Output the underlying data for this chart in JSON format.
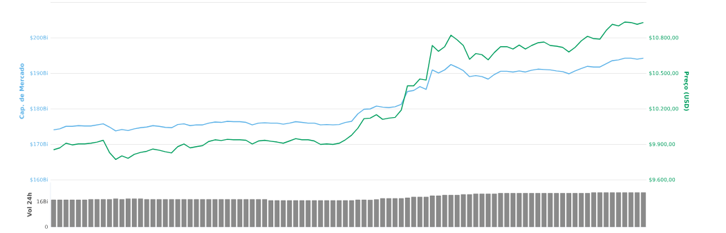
{
  "chart_data": [
    {
      "type": "line",
      "ylabel": "Cap. de Mercado",
      "y2label": "Preço (USD)",
      "grid": "y",
      "marker": "none",
      "line_style": "solid",
      "categories": [
        null,
        null,
        null,
        null,
        null,
        null,
        null,
        null,
        null,
        null,
        null,
        null,
        null,
        null,
        null,
        null,
        null,
        null,
        null,
        null,
        null,
        null,
        null,
        null,
        null,
        null,
        null,
        null,
        null,
        null,
        null,
        null,
        null,
        null,
        null,
        null,
        null,
        null,
        null,
        null,
        null,
        null,
        null,
        null,
        null,
        null,
        null,
        null,
        null,
        null,
        null,
        null,
        null,
        null,
        null,
        null,
        null,
        null,
        null,
        null,
        null,
        null,
        null,
        null,
        null,
        null,
        null,
        null,
        null,
        null,
        null,
        null,
        null,
        null,
        null,
        null,
        null,
        null,
        null,
        null,
        null,
        null,
        null,
        null,
        null,
        null,
        null,
        null,
        null,
        null,
        null,
        null,
        null,
        null,
        null,
        null
      ],
      "ylim": [
        160,
        210
      ],
      "yticks": [
        {
          "value": 160,
          "label": "$160Bi"
        },
        {
          "value": 170,
          "label": "$170Bi"
        },
        {
          "value": 180,
          "label": "$180Bi"
        },
        {
          "value": 190,
          "label": "$190Bi"
        },
        {
          "value": 200,
          "label": "$200Bi"
        },
        {
          "value": 210,
          "label": null
        }
      ],
      "y2lim": [
        9600,
        11100
      ],
      "y2ticks": [
        {
          "value": 9600,
          "label": "$9.600,00"
        },
        {
          "value": 9900,
          "label": "$9.900,00"
        },
        {
          "value": 10200,
          "label": "$10.200,00"
        },
        {
          "value": 10500,
          "label": "$10.500,00"
        },
        {
          "value": 10800,
          "label": "$10.800,00"
        },
        {
          "value": 11100,
          "label": null
        }
      ],
      "series": [
        {
          "color": "#5cb2e8",
          "axis": "y",
          "values": [
            174.1,
            174.4,
            175.1,
            175.1,
            175.3,
            175.2,
            175.2,
            175.5,
            175.8,
            174.9,
            173.8,
            174.2,
            173.9,
            174.4,
            174.7,
            174.9,
            175.3,
            175.1,
            174.8,
            174.7,
            175.6,
            175.8,
            175.3,
            175.5,
            175.5,
            176.0,
            176.3,
            176.2,
            176.5,
            176.4,
            176.4,
            176.2,
            175.5,
            176.0,
            176.1,
            176.0,
            176.0,
            175.7,
            176.0,
            176.4,
            176.2,
            176.0,
            176.0,
            175.5,
            175.6,
            175.5,
            175.6,
            176.2,
            176.5,
            178.6,
            179.9,
            180.0,
            180.8,
            180.5,
            180.4,
            180.6,
            181.3,
            184.9,
            185.2,
            186.3,
            185.5,
            191.0,
            190.1,
            191.0,
            192.5,
            191.7,
            190.8,
            189.1,
            189.4,
            189.1,
            188.4,
            189.7,
            190.6,
            190.6,
            190.4,
            190.7,
            190.4,
            190.9,
            191.2,
            191.1,
            191.0,
            190.7,
            190.5,
            189.9,
            190.7,
            191.4,
            192.0,
            191.8,
            191.8,
            192.7,
            193.6,
            193.8,
            194.3,
            194.3,
            194.0,
            194.3
          ]
        },
        {
          "color": "#009e5e",
          "axis": "y2",
          "values": [
            9855,
            9871,
            9910,
            9896,
            9904,
            9904,
            9910,
            9920,
            9935,
            9832,
            9773,
            9803,
            9783,
            9816,
            9832,
            9842,
            9861,
            9851,
            9838,
            9828,
            9881,
            9904,
            9871,
            9881,
            9890,
            9925,
            9939,
            9933,
            9943,
            9939,
            9939,
            9935,
            9904,
            9929,
            9935,
            9927,
            9920,
            9910,
            9929,
            9949,
            9939,
            9939,
            9929,
            9900,
            9904,
            9900,
            9910,
            9939,
            9978,
            10036,
            10118,
            10122,
            10151,
            10112,
            10122,
            10128,
            10190,
            10395,
            10395,
            10453,
            10444,
            10736,
            10687,
            10726,
            10823,
            10784,
            10736,
            10619,
            10668,
            10658,
            10615,
            10677,
            10726,
            10726,
            10706,
            10740,
            10706,
            10736,
            10759,
            10765,
            10736,
            10730,
            10720,
            10681,
            10720,
            10775,
            10814,
            10794,
            10790,
            10862,
            10915,
            10901,
            10934,
            10930,
            10915,
            10930
          ]
        }
      ]
    },
    {
      "type": "bar",
      "ylabel": "Vol 24h",
      "color": "#8a8a8a",
      "categories": [
        null,
        null,
        null,
        null,
        null,
        null,
        null,
        null,
        null,
        null,
        null,
        null,
        null,
        null,
        null,
        null,
        null,
        null,
        null,
        null,
        null,
        null,
        null,
        null,
        null,
        null,
        null,
        null,
        null,
        null,
        null,
        null,
        null,
        null,
        null,
        null,
        null,
        null,
        null,
        null,
        null,
        null,
        null,
        null,
        null,
        null,
        null,
        null,
        null,
        null,
        null,
        null,
        null,
        null,
        null,
        null,
        null,
        null,
        null,
        null,
        null,
        null,
        null,
        null,
        null,
        null,
        null,
        null,
        null,
        null,
        null,
        null,
        null,
        null,
        null,
        null,
        null,
        null,
        null,
        null,
        null,
        null,
        null,
        null,
        null,
        null,
        null,
        null,
        null,
        null,
        null,
        null,
        null,
        null,
        null,
        null
      ],
      "ylim": [
        0,
        28
      ],
      "yticks": [
        0,
        {
          "value": 16,
          "label": "16Bi"
        }
      ],
      "values": [
        17.0,
        17.0,
        17.0,
        17.0,
        17.0,
        17.0,
        17.3,
        17.3,
        17.3,
        17.3,
        17.7,
        17.3,
        17.7,
        17.7,
        17.7,
        17.3,
        17.3,
        17.3,
        17.3,
        17.3,
        17.3,
        17.3,
        17.3,
        17.3,
        17.3,
        17.3,
        17.3,
        17.3,
        17.3,
        17.3,
        17.3,
        17.3,
        17.3,
        17.3,
        17.3,
        16.6,
        16.6,
        16.6,
        16.6,
        16.6,
        16.6,
        16.6,
        16.6,
        16.6,
        16.6,
        16.6,
        16.6,
        16.6,
        16.6,
        17.0,
        17.0,
        16.9,
        17.2,
        17.9,
        17.9,
        17.9,
        17.9,
        18.3,
        18.8,
        18.8,
        18.8,
        19.6,
        19.6,
        20.0,
        20.0,
        20.0,
        20.4,
        20.4,
        20.8,
        20.8,
        20.8,
        20.8,
        21.2,
        21.2,
        21.2,
        21.2,
        21.2,
        21.2,
        21.2,
        21.2,
        21.2,
        21.2,
        21.2,
        21.2,
        21.2,
        21.2,
        21.2,
        21.6,
        21.6,
        21.6,
        21.6,
        21.6,
        21.6,
        21.6,
        21.6,
        21.6
      ]
    }
  ]
}
